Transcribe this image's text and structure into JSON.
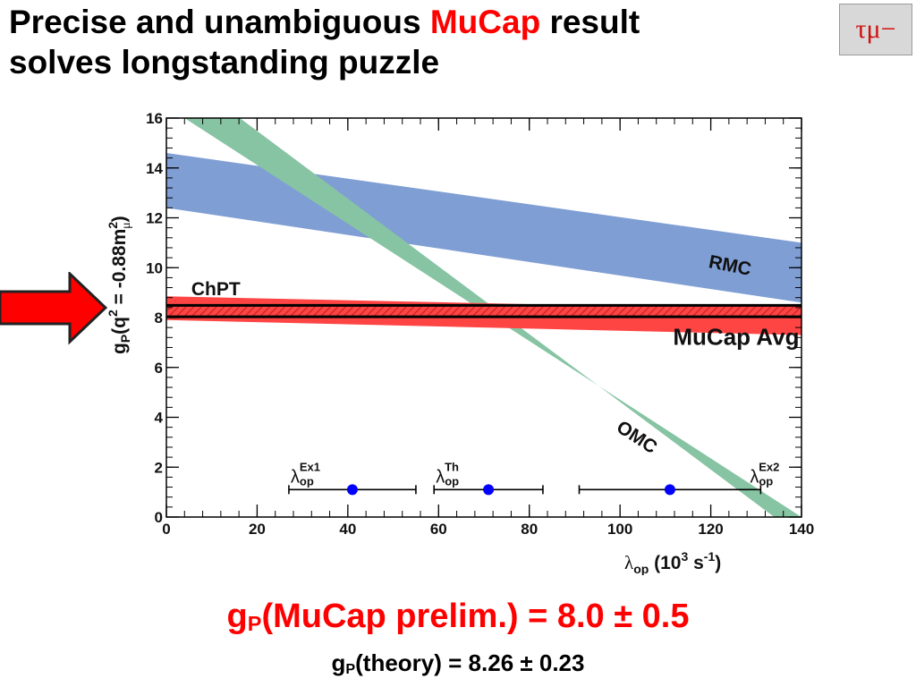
{
  "slide": {
    "title_part1": "Precise and unambiguous ",
    "title_accent": "MuCap",
    "title_part2": " result",
    "title_line2": "solves longstanding puzzle",
    "corner_label": "τμ−",
    "result_main_prefix": "g",
    "result_main_sub": "P",
    "result_main_rest": "(MuCap prelim.) = 8.0 ± 0.5",
    "result_sub_prefix": "g",
    "result_sub_sub": "P",
    "result_sub_rest": "(theory) = 8.26 ± 0.23"
  },
  "colors": {
    "title_accent": "#ff0000",
    "arrow_fill": "#ff0000",
    "rmc_band": "#7f9ed4",
    "omc_band": "#87c4a3",
    "mucap_band": "#ff4444",
    "chpt_hatch": "#cc2a2a",
    "point": "#0000ff"
  },
  "chart_data": {
    "type": "area",
    "xlim": [
      0,
      140
    ],
    "ylim": [
      0,
      16
    ],
    "x_ticks": [
      "0",
      "20",
      "40",
      "60",
      "80",
      "100",
      "120",
      "140"
    ],
    "y_ticks": [
      "0",
      "2",
      "4",
      "6",
      "8",
      "10",
      "12",
      "14",
      "16"
    ],
    "xlabel": {
      "base": "λ",
      "sub": "op",
      "rest": " (10",
      "sup": "3",
      "tail": " s",
      "sup2": "-1",
      "close": ")"
    },
    "ylabel": {
      "base": "g",
      "sub": "P",
      "mid": "(q",
      "sup": "2",
      "mid2": " = -0.88m",
      "sup2": "2",
      "sub2": "μ",
      "close": ")"
    },
    "bands": [
      {
        "name": "RMC",
        "x": [
          0,
          140
        ],
        "lower": [
          12.4,
          8.6
        ],
        "upper": [
          14.6,
          11.0
        ]
      },
      {
        "name": "OMC",
        "lower_edge": [
          [
            0,
            18.2
          ],
          [
            134,
            0
          ]
        ],
        "upper_edge": [
          [
            4,
            16.0
          ],
          [
            140,
            0
          ]
        ]
      },
      {
        "name": "MuCap Avg",
        "x": [
          0,
          140
        ],
        "lower": [
          7.9,
          7.3
        ],
        "upper": [
          8.85,
          8.3
        ]
      },
      {
        "name": "ChPT",
        "x": [
          0,
          140
        ],
        "lower": [
          8.03,
          8.03
        ],
        "upper": [
          8.49,
          8.49
        ]
      }
    ],
    "labels": [
      {
        "text": "RMC"
      },
      {
        "text": "OMC"
      },
      {
        "text": "ChPT"
      },
      {
        "text": "MuCap Avg"
      }
    ],
    "points": [
      {
        "name": "λopEx1",
        "label_base": "λ",
        "label_sub": "op",
        "label_sup": "Ex1",
        "x": 41,
        "y": 1.1,
        "xerr": [
          27,
          55
        ]
      },
      {
        "name": "λopTh",
        "label_base": "λ",
        "label_sub": "op",
        "label_sup": "Th",
        "x": 71,
        "y": 1.1,
        "xerr": [
          59,
          83
        ]
      },
      {
        "name": "λopEx2",
        "label_base": "λ",
        "label_sub": "op",
        "label_sup": "Ex2",
        "x": 111,
        "y": 1.1,
        "xerr": [
          91,
          131
        ]
      }
    ]
  }
}
